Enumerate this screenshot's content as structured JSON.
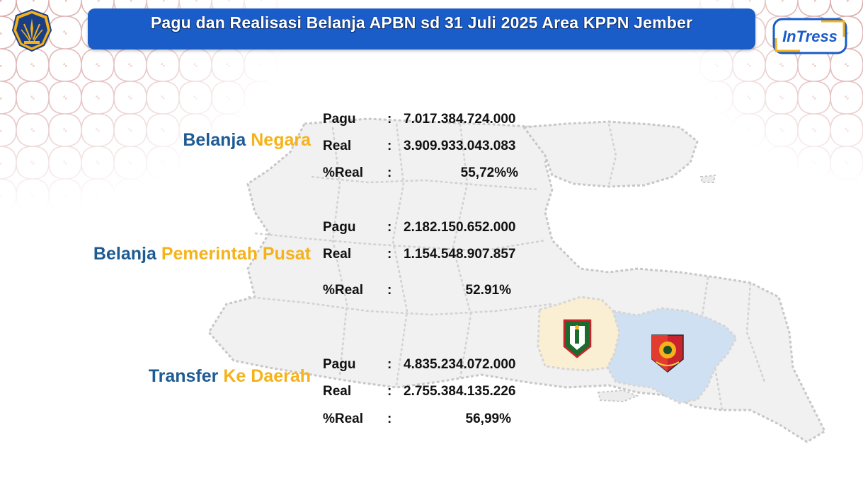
{
  "title": "Pagu dan Realisasi Belanja APBN sd 31 Juli 2025 Area KPPN Jember",
  "colors": {
    "title_bar": "#1a5cc8",
    "heading_primary": "#1e5b93",
    "heading_accent": "#f5b21a",
    "map_bondowoso": "#fbefd3",
    "map_jember": "#cfe0f3"
  },
  "logos": {
    "left": "kemenkeu-emblem",
    "right": "InTress"
  },
  "sections": [
    {
      "title_primary": "Belanja",
      "title_accent": "Negara",
      "rows": [
        {
          "label": "Pagu",
          "colon": ":",
          "value": "7.017.384.724.000"
        },
        {
          "label": "Real",
          "colon": ":",
          "value": "3.909.933.043.083"
        },
        {
          "label": "%Real",
          "colon": ":",
          "value": "55,72%%"
        }
      ]
    },
    {
      "title_primary": "Belanja",
      "title_accent": "Pemerintah Pusat",
      "rows": [
        {
          "label": "Pagu",
          "colon": ":",
          "value": "2.182.150.652.000"
        },
        {
          "label": "Real",
          "colon": ":",
          "value": "1.154.548.907.857"
        },
        {
          "label": "%Real",
          "colon": ":",
          "value": "52.91%"
        }
      ]
    },
    {
      "title_primary": "Transfer",
      "title_accent": "Ke Daerah",
      "rows": [
        {
          "label": "Pagu",
          "colon": ":",
          "value": "4.835.234.072.000"
        },
        {
          "label": "Real",
          "colon": ":",
          "value": "2.755.384.135.226"
        },
        {
          "label": "%Real",
          "colon": ":",
          "value": "56,99%"
        }
      ]
    }
  ]
}
